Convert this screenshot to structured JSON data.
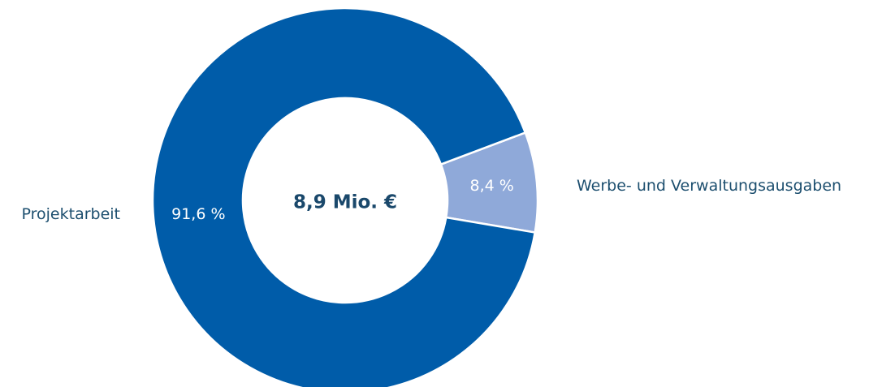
{
  "chart_data": {
    "type": "donut",
    "center_label": "8,9 Mio. €",
    "categories": [
      "Projektarbeit",
      "Werbe- und Verwaltungsausgaben"
    ],
    "values": [
      91.6,
      8.4
    ],
    "value_labels": [
      "91,6 %",
      "8,4 %"
    ],
    "colors": [
      "#005ca9",
      "#8fa9d9"
    ]
  }
}
